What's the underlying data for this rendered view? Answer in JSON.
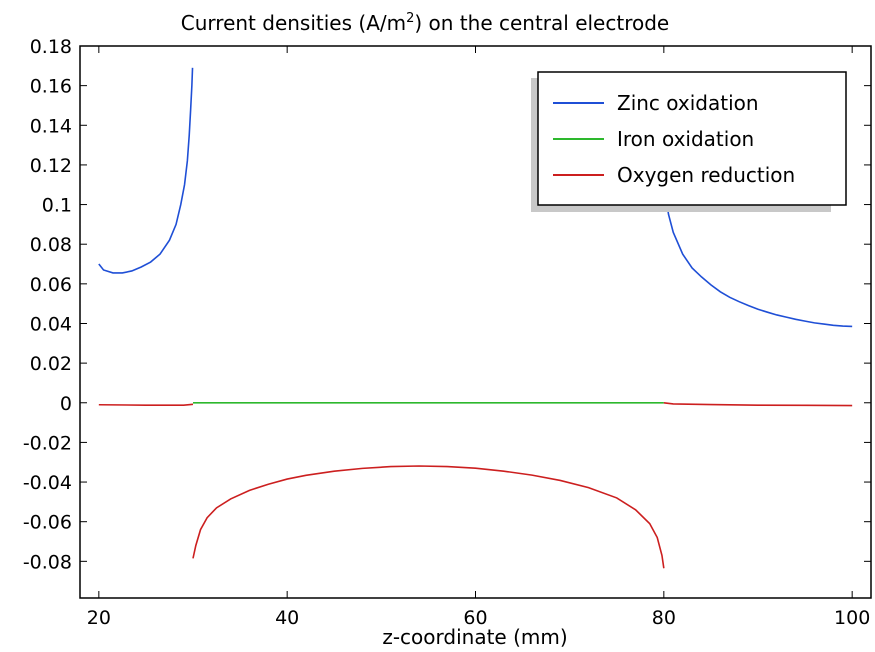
{
  "chart_data": {
    "type": "line",
    "title": "Current densities (A/m",
    "title_sup": "2",
    "title_end": ") on the central electrode",
    "xlabel": "z-coordinate (mm)",
    "ylabel": "",
    "xlim": [
      18,
      102
    ],
    "ylim": [
      -0.0985,
      0.18
    ],
    "xticks": [
      20,
      40,
      60,
      80,
      100
    ],
    "xtick_labels": [
      "20",
      "40",
      "60",
      "80",
      "100"
    ],
    "yticks": [
      0.18,
      0.16,
      0.14,
      0.12,
      0.1,
      0.08,
      0.06,
      0.04,
      0.02,
      0,
      -0.02,
      -0.04,
      -0.06,
      -0.08
    ],
    "ytick_labels": [
      "0.18",
      "0.16",
      "0.14",
      "0.12",
      "0.1",
      "0.08",
      "0.06",
      "0.04",
      "0.02",
      "0",
      "-0.02",
      "-0.04",
      "-0.06",
      "-0.08"
    ],
    "grid": false,
    "legend_position": "top-right",
    "series": [
      {
        "name": "Zinc oxidation",
        "color": "#1f4fd6",
        "segments": [
          [
            [
              20,
              0.07
            ],
            [
              20.5,
              0.067
            ],
            [
              21.5,
              0.0655
            ],
            [
              22.5,
              0.0655
            ],
            [
              23.5,
              0.0665
            ],
            [
              24.5,
              0.0685
            ],
            [
              25.5,
              0.071
            ],
            [
              26.5,
              0.075
            ],
            [
              27.5,
              0.082
            ],
            [
              28.2,
              0.09
            ],
            [
              28.7,
              0.1
            ],
            [
              29.1,
              0.11
            ],
            [
              29.4,
              0.122
            ],
            [
              29.6,
              0.135
            ],
            [
              29.75,
              0.148
            ],
            [
              29.88,
              0.16
            ],
            [
              29.95,
              0.169
            ]
          ],
          [
            [
              80.2,
              0.104
            ],
            [
              80.5,
              0.095
            ],
            [
              81,
              0.086
            ],
            [
              82,
              0.075
            ],
            [
              83,
              0.068
            ],
            [
              84,
              0.0635
            ],
            [
              85,
              0.0595
            ],
            [
              86,
              0.056
            ],
            [
              87,
              0.0532
            ],
            [
              88,
              0.051
            ],
            [
              89,
              0.049
            ],
            [
              90,
              0.0472
            ],
            [
              91,
              0.0457
            ],
            [
              92,
              0.0443
            ],
            [
              93,
              0.0432
            ],
            [
              94,
              0.0421
            ],
            [
              95,
              0.0412
            ],
            [
              96,
              0.0403
            ],
            [
              97,
              0.0397
            ],
            [
              98,
              0.0391
            ],
            [
              99,
              0.0387
            ],
            [
              100,
              0.0385
            ]
          ]
        ]
      },
      {
        "name": "Iron oxidation",
        "color": "#2db82d",
        "segments": [
          [
            [
              30,
              0.0
            ],
            [
              80,
              0.0
            ]
          ]
        ]
      },
      {
        "name": "Oxygen reduction",
        "color": "#cc1f1f",
        "segments": [
          [
            [
              20,
              -0.001
            ],
            [
              25,
              -0.0012
            ],
            [
              29,
              -0.0012
            ],
            [
              30,
              -0.0008
            ]
          ],
          [
            [
              30,
              -0.0785
            ],
            [
              30.3,
              -0.072
            ],
            [
              30.8,
              -0.064
            ],
            [
              31.5,
              -0.058
            ],
            [
              32.5,
              -0.053
            ],
            [
              34,
              -0.0485
            ],
            [
              36,
              -0.0442
            ],
            [
              38,
              -0.0411
            ],
            [
              40,
              -0.0385
            ],
            [
              42,
              -0.0366
            ],
            [
              45,
              -0.0345
            ],
            [
              48,
              -0.0331
            ],
            [
              51,
              -0.0322
            ],
            [
              54,
              -0.0319
            ],
            [
              57,
              -0.0322
            ],
            [
              60,
              -0.033
            ],
            [
              63,
              -0.0345
            ],
            [
              66,
              -0.0365
            ],
            [
              69,
              -0.0392
            ],
            [
              72,
              -0.0428
            ],
            [
              75,
              -0.048
            ],
            [
              77,
              -0.054
            ],
            [
              78.5,
              -0.061
            ],
            [
              79.3,
              -0.068
            ],
            [
              79.8,
              -0.077
            ],
            [
              80,
              -0.0835
            ]
          ],
          [
            [
              80,
              0.0
            ],
            [
              81,
              -0.0006
            ],
            [
              85,
              -0.0009
            ],
            [
              90,
              -0.0012
            ],
            [
              95,
              -0.0013
            ],
            [
              100,
              -0.0014
            ]
          ]
        ]
      }
    ]
  }
}
